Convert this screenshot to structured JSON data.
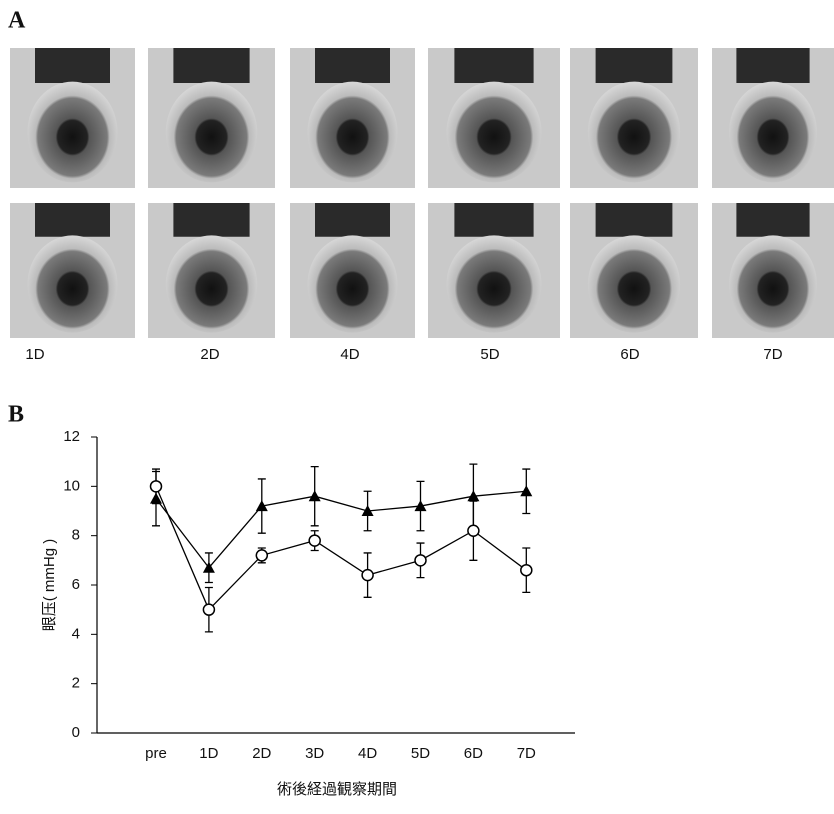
{
  "panel_a": {
    "label": "A",
    "columns": [
      "1D",
      "2D",
      "4D",
      "5D",
      "6D",
      "7D"
    ]
  },
  "chart_data": {
    "type": "line",
    "label": "B",
    "y_label": "眼压( mmHg )",
    "x_label": "術後経過観察期間",
    "categories": [
      "pre",
      "1D",
      "2D",
      "3D",
      "4D",
      "5D",
      "6D",
      "7D"
    ],
    "series": [
      {
        "color": "#000000",
        "marker": "triangle",
        "values": [
          9.5,
          6.7,
          9.2,
          9.6,
          9.0,
          9.2,
          9.6,
          9.8
        ],
        "errors": [
          1.1,
          0.6,
          1.1,
          1.2,
          0.8,
          1.0,
          1.3,
          0.9
        ]
      },
      {
        "color": "#000000",
        "marker": "circle",
        "values": [
          10.0,
          5.0,
          7.2,
          7.8,
          6.4,
          7.0,
          8.2,
          6.6
        ],
        "errors": [
          0.7,
          0.9,
          0.3,
          0.4,
          0.9,
          0.7,
          1.2,
          0.9
        ]
      }
    ],
    "ylim": [
      0,
      12
    ],
    "yticks": [
      0,
      2,
      4,
      6,
      8,
      10,
      12
    ]
  }
}
